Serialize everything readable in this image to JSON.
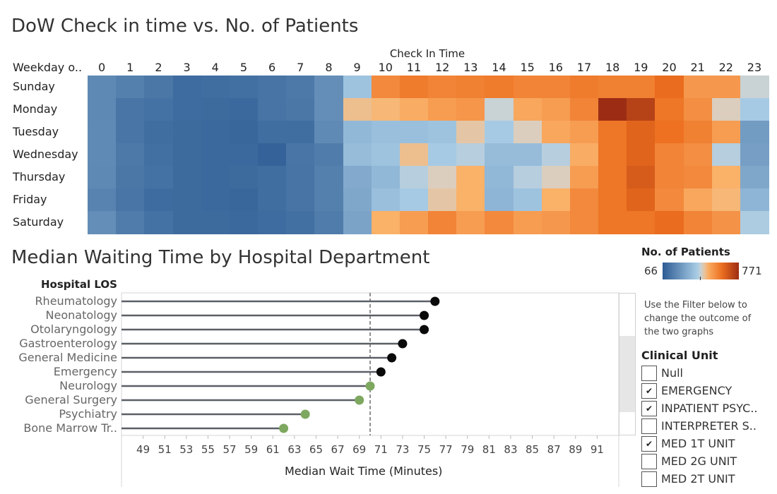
{
  "chart_data": [
    {
      "type": "heatmap",
      "title": "DoW Check in time vs. No. of Patients",
      "xlabel": "Check In Time",
      "ylabel": "Weekday o..",
      "x": [
        "0",
        "1",
        "2",
        "3",
        "4",
        "5",
        "6",
        "7",
        "8",
        "9",
        "10",
        "11",
        "12",
        "13",
        "14",
        "15",
        "16",
        "17",
        "18",
        "19",
        "20",
        "21",
        "22",
        "23"
      ],
      "y": [
        "Sunday",
        "Monday",
        "Tuesday",
        "Wednesday",
        "Thursday",
        "Friday",
        "Saturday"
      ],
      "values": [
        [
          195,
          170,
          145,
          115,
          120,
          125,
          135,
          150,
          210,
          360,
          560,
          590,
          570,
          580,
          590,
          570,
          570,
          590,
          580,
          580,
          620,
          530,
          530,
          420
        ],
        [
          195,
          140,
          130,
          115,
          110,
          105,
          135,
          145,
          210,
          460,
          470,
          490,
          520,
          535,
          420,
          500,
          520,
          570,
          771,
          720,
          600,
          550,
          440,
          380
        ],
        [
          200,
          140,
          120,
          110,
          105,
          100,
          120,
          120,
          200,
          330,
          350,
          350,
          360,
          450,
          380,
          440,
          500,
          520,
          600,
          640,
          610,
          580,
          520,
          250
        ],
        [
          200,
          150,
          125,
          110,
          105,
          105,
          90,
          140,
          160,
          340,
          360,
          460,
          380,
          400,
          340,
          340,
          400,
          490,
          600,
          640,
          570,
          550,
          400,
          260
        ],
        [
          195,
          145,
          130,
          110,
          105,
          110,
          120,
          135,
          170,
          290,
          330,
          400,
          440,
          480,
          330,
          400,
          440,
          520,
          600,
          660,
          570,
          560,
          480,
          280
        ],
        [
          180,
          140,
          115,
          110,
          105,
          100,
          120,
          135,
          170,
          280,
          350,
          380,
          450,
          480,
          320,
          360,
          480,
          560,
          600,
          640,
          560,
          500,
          470,
          320
        ],
        [
          210,
          160,
          130,
          110,
          110,
          105,
          115,
          125,
          160,
          270,
          480,
          520,
          570,
          520,
          560,
          520,
          530,
          560,
          600,
          600,
          620,
          570,
          540,
          390
        ]
      ],
      "legend": {
        "title": "No. of Patients",
        "min": "66",
        "max": "771",
        "placement": "right"
      }
    },
    {
      "type": "lollipop",
      "title": "Median Waiting Time by Hospital Department",
      "xlabel": "Median Wait Time (Minutes)",
      "ylabel": "Hospital LOS",
      "xticks": [
        "49",
        "51",
        "53",
        "55",
        "57",
        "59",
        "61",
        "63",
        "65",
        "67",
        "69",
        "71",
        "73",
        "75",
        "77",
        "79",
        "81",
        "83",
        "85",
        "87",
        "89",
        "91"
      ],
      "xlim": [
        47,
        93
      ],
      "reference_line": 70,
      "categories": [
        "Rheumatology",
        "Neonatology",
        "Otolaryngology",
        "Gastroenterology",
        "General Medicine",
        "Emergency",
        "Neurology",
        "General Surgery",
        "Psychiatry",
        "Bone Marrow Tr.."
      ],
      "values": [
        76,
        75,
        75,
        73,
        72,
        71,
        70,
        69,
        64,
        62
      ],
      "highlight": [
        true,
        true,
        true,
        true,
        true,
        true,
        false,
        false,
        false,
        false
      ],
      "colors": {
        "above": "#0a0a0a",
        "below": "#7ea860",
        "stem": "#5a5f66"
      }
    }
  ],
  "colors": {
    "cold_min": "#2c5b93",
    "cold_mid": "#a7cbe5",
    "neutral": "#d4d4cf",
    "warm_mid": "#fbb36b",
    "warm_max": "#9c2d14"
  },
  "filter": {
    "note": "Use the Filter below to change the outcome of the two graphs",
    "title": "Clinical Unit",
    "items": [
      {
        "label": "Null",
        "checked": false
      },
      {
        "label": "EMERGENCY",
        "checked": true
      },
      {
        "label": "INPATIENT PSYC..",
        "checked": true
      },
      {
        "label": "INTERPRETER S..",
        "checked": false
      },
      {
        "label": "MED 1T UNIT",
        "checked": true
      },
      {
        "label": "MED 2G UNIT",
        "checked": false
      },
      {
        "label": "MED 2T UNIT",
        "checked": false
      }
    ]
  },
  "checkmark": "✔"
}
